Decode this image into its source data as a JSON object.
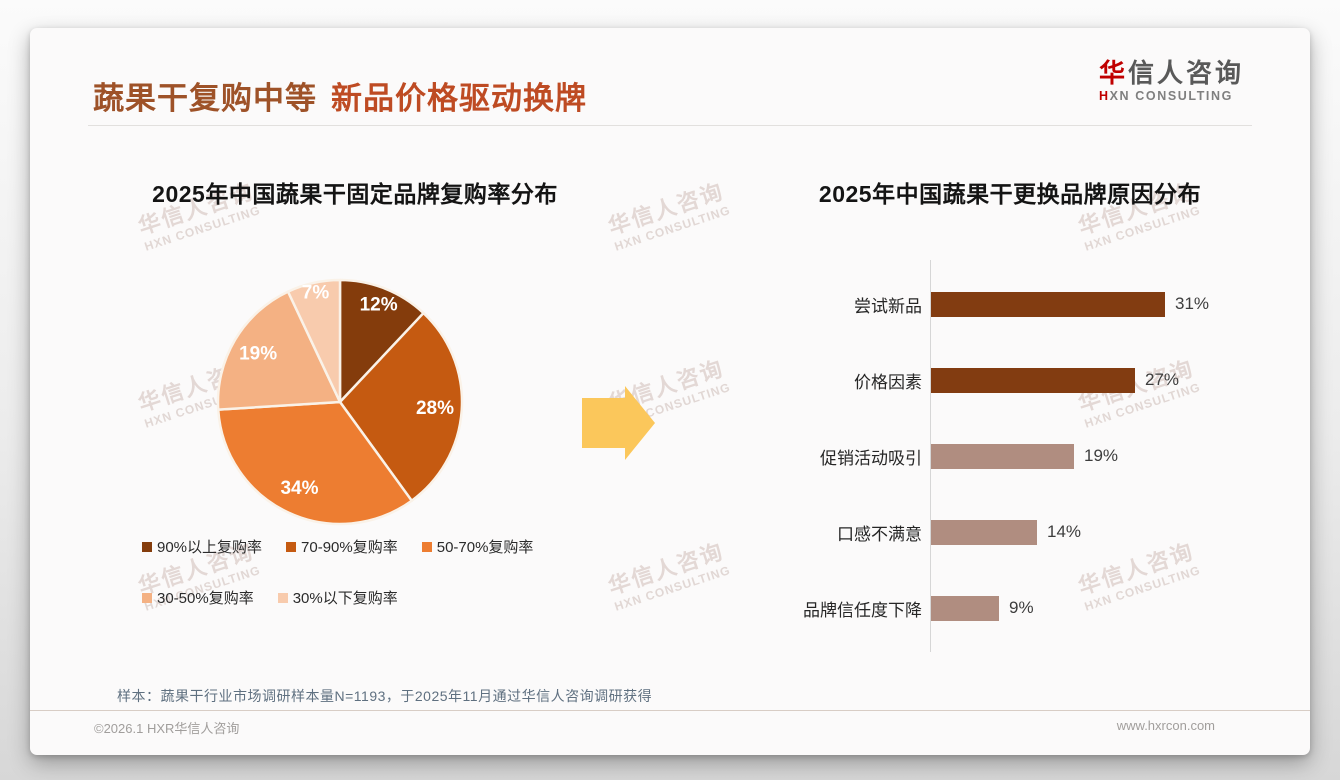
{
  "header": {
    "title_part1": "蔬果干复购中等",
    "title_part2": "新品价格驱动换牌"
  },
  "logo": {
    "cn_first": "华",
    "cn_rest": "信人咨询",
    "en_first": "H",
    "en_rest": "XN CONSULTING"
  },
  "watermark": {
    "cn": "华信人咨询",
    "en": "HXN CONSULTING"
  },
  "chart_data": [
    {
      "type": "pie",
      "title": "2025年中国蔬果干固定品牌复购率分布",
      "labels": [
        "90%以上复购率",
        "70-90%复购率",
        "50-70%复购率",
        "30-50%复购率",
        "30%以下复购率"
      ],
      "values": [
        12,
        28,
        34,
        19,
        7
      ],
      "data_labels": [
        "12%",
        "28%",
        "34%",
        "19%",
        "7%"
      ],
      "colors": [
        "#843C0C",
        "#C55A11",
        "#ED7D31",
        "#F4B183",
        "#F8CBAD"
      ],
      "start_angle_deg": 0,
      "direction": "clockwise",
      "legend_position": "bottom",
      "slice_border_color": "#FAF2E8",
      "label_color": "#ffffff"
    },
    {
      "type": "bar",
      "orientation": "horizontal",
      "title": "2025年中国蔬果干更换品牌原因分布",
      "categories": [
        "尝试新品",
        "价格因素",
        "促销活动吸引",
        "口感不满意",
        "品牌信任度下降"
      ],
      "values": [
        31,
        27,
        19,
        14,
        9
      ],
      "value_labels": [
        "31%",
        "27%",
        "19%",
        "14%",
        "9%"
      ],
      "bar_colors": [
        "#823C11",
        "#823C11",
        "#B08D80",
        "#B08D80",
        "#B08D80"
      ],
      "xlim": [
        0,
        35
      ],
      "grid": false,
      "axis_line_color": "#d6d6d6"
    }
  ],
  "arrow": {
    "color": "#FBC75B"
  },
  "notes": {
    "sample": "样本：蔬果干行业市场调研样本量N=1193，于2025年11月通过华信人咨询调研获得"
  },
  "footer": {
    "copyright": "©2026.1 HXR华信人咨询",
    "website": "www.hxrcon.com"
  }
}
